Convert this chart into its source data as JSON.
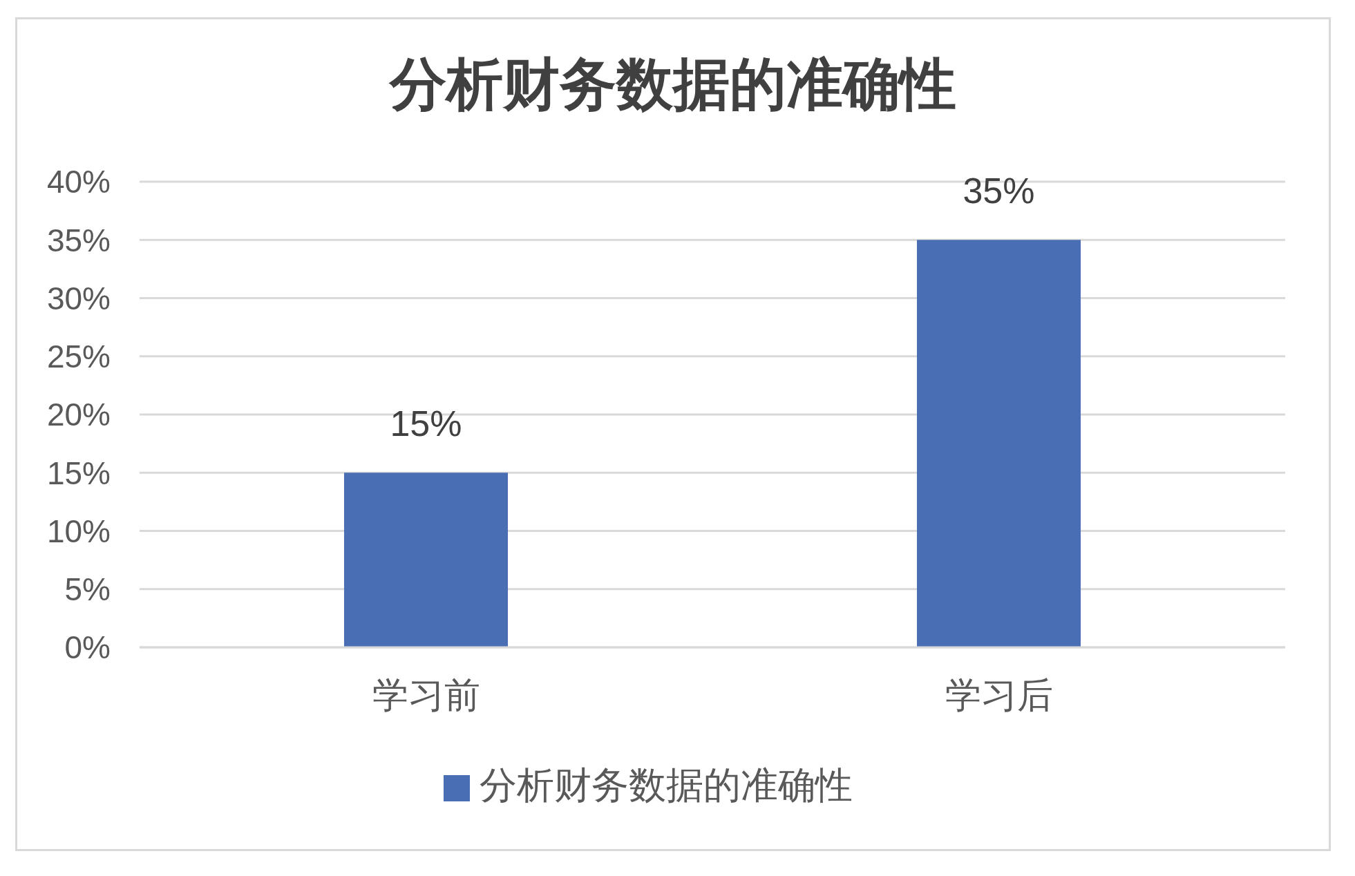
{
  "chart_data": {
    "type": "bar",
    "title": "分析财务数据的准确性",
    "categories": [
      "学习前",
      "学习后"
    ],
    "series": [
      {
        "name": "分析财务数据的准确性",
        "color": "#4a6eb4",
        "values": [
          15,
          35
        ],
        "value_labels": [
          "15%",
          "35%"
        ]
      }
    ],
    "ylim": [
      0,
      40
    ],
    "yticks": [
      {
        "value": 0,
        "label": "0%"
      },
      {
        "value": 5,
        "label": "5%"
      },
      {
        "value": 10,
        "label": "10%"
      },
      {
        "value": 15,
        "label": "15%"
      },
      {
        "value": 20,
        "label": "20%"
      },
      {
        "value": 25,
        "label": "25%"
      },
      {
        "value": 30,
        "label": "30%"
      },
      {
        "value": 35,
        "label": "35%"
      },
      {
        "value": 40,
        "label": "40%"
      }
    ],
    "grid": "y",
    "legend": "bottom"
  }
}
